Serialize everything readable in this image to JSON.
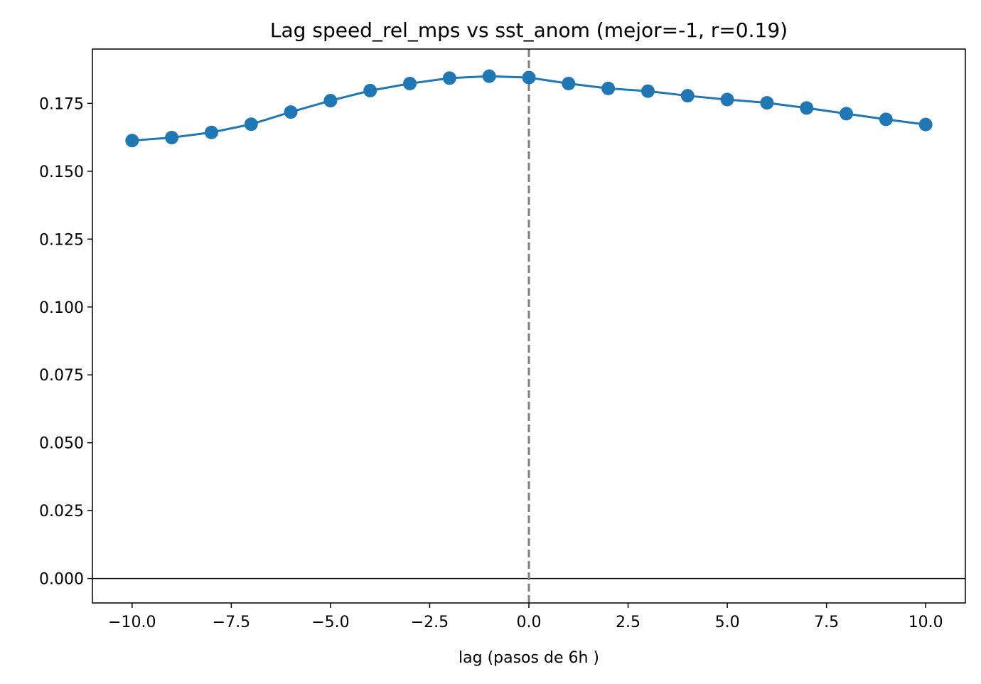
{
  "chart_data": {
    "type": "line",
    "title": "Lag speed_rel_mps vs sst_anom (mejor=-1, r=0.19)",
    "xlabel": "lag (pasos de 6h )",
    "ylabel": "",
    "xlim": [
      -11,
      11
    ],
    "ylim": [
      -0.009,
      0.195
    ],
    "x_ticks": [
      -10.0,
      -7.5,
      -5.0,
      -2.5,
      0.0,
      2.5,
      5.0,
      7.5,
      10.0
    ],
    "x_tick_labels": [
      "−10.0",
      "−7.5",
      "−5.0",
      "−2.5",
      "0.0",
      "2.5",
      "5.0",
      "7.5",
      "10.0"
    ],
    "y_ticks": [
      0.0,
      0.025,
      0.05,
      0.075,
      0.1,
      0.125,
      0.15,
      0.175
    ],
    "y_tick_labels": [
      "0.000",
      "0.025",
      "0.050",
      "0.075",
      "0.100",
      "0.125",
      "0.150",
      "0.175"
    ],
    "grid": false,
    "legend": "none",
    "series": [
      {
        "color": "#1f77b4",
        "marker": "circle",
        "x": [
          -10,
          -9,
          -8,
          -7,
          -6,
          -5,
          -4,
          -3,
          -2,
          -1,
          0,
          1,
          2,
          3,
          4,
          5,
          6,
          7,
          8,
          9,
          10
        ],
        "values": [
          0.1613,
          0.1624,
          0.1643,
          0.1673,
          0.1718,
          0.176,
          0.1797,
          0.1823,
          0.1843,
          0.185,
          0.1845,
          0.1823,
          0.1805,
          0.1795,
          0.1778,
          0.1764,
          0.1752,
          0.1733,
          0.1712,
          0.1691,
          0.1672
        ]
      }
    ],
    "reference_lines": {
      "horizontal": {
        "y": 0.0,
        "color": "#000000",
        "style": "solid"
      },
      "vertical": {
        "x": 0.0,
        "color": "#808080",
        "style": "dashed"
      }
    }
  }
}
